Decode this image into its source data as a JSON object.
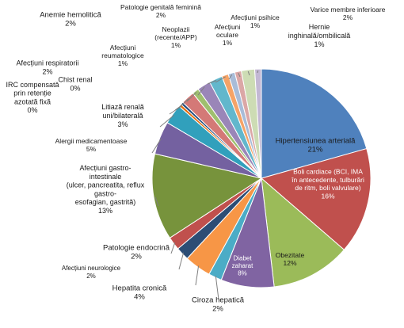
{
  "chart_data": {
    "type": "pie",
    "title": "",
    "start": "top",
    "direction": "clockwise",
    "slices": [
      {
        "label": "Hipertensiunea arterială",
        "pct_text": "21%",
        "value": 21,
        "color": "#4f81bd"
      },
      {
        "label": "Boli cardiace (BCI, IMA în antecedente, tulburări de ritm, boli valvulare)",
        "pct_text": "16%",
        "value": 16,
        "color": "#c0504d"
      },
      {
        "label": "Obezitate",
        "pct_text": "12%",
        "value": 12,
        "color": "#9bbb59"
      },
      {
        "label": "Diabet zaharat",
        "pct_text": "8%",
        "value": 8,
        "color": "#8064a2"
      },
      {
        "label": "Ciroza hepatică",
        "pct_text": "2%",
        "value": 2,
        "color": "#4bacc6"
      },
      {
        "label": "Hepatita cronică",
        "pct_text": "4%",
        "value": 4,
        "color": "#f79646"
      },
      {
        "label": "Afecțiuni neurologice",
        "pct_text": "2%",
        "value": 2,
        "color": "#2c4d75"
      },
      {
        "label": "Patologie endocrină",
        "pct_text": "2%",
        "value": 2,
        "color": "#c0504d"
      },
      {
        "label": "Afecțiuni gastro-intestinale (ulcer, pancreatita, reflux gastro-esofagian, gastrită)",
        "pct_text": "13%",
        "value": 13,
        "color": "#77933c"
      },
      {
        "label": "Alergii medicamentoase",
        "pct_text": "5%",
        "value": 5,
        "color": "#7461a0"
      },
      {
        "label": "Litiază renală uni/bilaterală",
        "pct_text": "3%",
        "value": 3,
        "color": "#31a0bc"
      },
      {
        "label": "IRC compensată prin retenție azotată fixă",
        "pct_text": "0%",
        "value": 0.4,
        "color": "#e46c0a"
      },
      {
        "label": "Chist renal",
        "pct_text": "0%",
        "value": 0.4,
        "color": "#1f497d"
      },
      {
        "label": "Afecțiuni respiratorii",
        "pct_text": "2%",
        "value": 2,
        "color": "#d47977"
      },
      {
        "label": "Afecțiuni reumatologice",
        "pct_text": "1%",
        "value": 1,
        "color": "#9fbf6e"
      },
      {
        "label": "Anemie hemolitică",
        "pct_text": "2%",
        "value": 2,
        "color": "#9a86b8"
      },
      {
        "label": "Patologie genitală feminină",
        "pct_text": "2%",
        "value": 2,
        "color": "#62b7cc"
      },
      {
        "label": "Neoplazii (recente/APP)",
        "pct_text": "1%",
        "value": 1,
        "color": "#f5a367"
      },
      {
        "label": "Afecțiuni oculare",
        "pct_text": "1%",
        "value": 1,
        "color": "#a8bcd8"
      },
      {
        "label": "Afecțiuni psihice",
        "pct_text": "1%",
        "value": 1,
        "color": "#dba7a6"
      },
      {
        "label": "Varice membre inferioare",
        "pct_text": "2%",
        "value": 2,
        "color": "#cddcb4"
      },
      {
        "label": "Hernie inghinală/ombilicală",
        "pct_text": "1%",
        "value": 1,
        "color": "#c3b8d4"
      }
    ]
  },
  "labels": [
    {
      "lines": [
        "Hipertensiunea arterială",
        "21%"
      ]
    },
    {
      "lines": [
        "Boli cardiace (BCI, IMA",
        "în antecedente, tulburări",
        "de ritm, boli valvulare)",
        "16%"
      ]
    },
    {
      "lines": [
        "Obezitate",
        "12%"
      ]
    },
    {
      "lines": [
        "Diabet",
        "zaharat",
        "8%"
      ]
    },
    {
      "lines": [
        "Ciroza hepatică",
        "2%"
      ]
    },
    {
      "lines": [
        "Hepatita cronică",
        "4%"
      ]
    },
    {
      "lines": [
        "Afecțiuni neurologice",
        "2%"
      ]
    },
    {
      "lines": [
        "Patologie endocrină",
        "2%"
      ]
    },
    {
      "lines": [
        "Afecțiuni gastro-",
        "intestinale",
        "(ulcer, pancreatita, reflux",
        "gastro-",
        "esofagian, gastrită)",
        "13%"
      ]
    },
    {
      "lines": [
        "Alergii medicamentoase",
        "5%"
      ]
    },
    {
      "lines": [
        "Litiază renală",
        "uni/bilaterală",
        "3%"
      ]
    },
    {
      "lines": [
        "IRC compensată",
        "prin retenție",
        "azotată fixă",
        "0%"
      ]
    },
    {
      "lines": [
        "Chist renal",
        "0%"
      ]
    },
    {
      "lines": [
        "Afecțiuni respiratorii",
        "2%"
      ]
    },
    {
      "lines": [
        "Afecțiuni",
        "reumatologice",
        "1%"
      ]
    },
    {
      "lines": [
        "Anemie hemolitică",
        "2%"
      ]
    },
    {
      "lines": [
        "Patologie genitală feminină",
        "2%"
      ]
    },
    {
      "lines": [
        "Neoplazii",
        "(recente/APP)",
        "1%"
      ]
    },
    {
      "lines": [
        "Afecțiuni",
        "oculare",
        "1%"
      ]
    },
    {
      "lines": [
        "Afecțiuni psihice",
        "1%"
      ]
    },
    {
      "lines": [
        "Varice membre inferioare",
        "2%"
      ]
    },
    {
      "lines": [
        "Hernie",
        "inghinală/ombilicală",
        "1%"
      ]
    }
  ]
}
